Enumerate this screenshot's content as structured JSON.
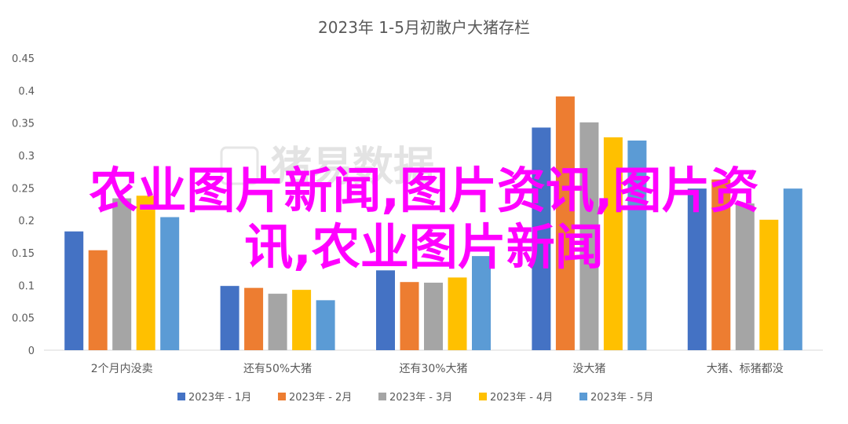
{
  "chart_data": {
    "type": "bar",
    "title": "2023年 1-5月初散户大猪存栏",
    "categories": [
      "2个月内没卖",
      "还有50%大猪",
      "还有30%大猪",
      "没大猪",
      "大猪、标猪都没"
    ],
    "series": [
      {
        "name": "2023年 - 1月",
        "color": "#4472c4",
        "values": [
          0.183,
          0.099,
          0.123,
          0.343,
          0.249
        ]
      },
      {
        "name": "2023年 - 2月",
        "color": "#ed7d31",
        "values": [
          0.154,
          0.096,
          0.105,
          0.391,
          0.263
        ]
      },
      {
        "name": "2023年 - 3月",
        "color": "#a5a5a5",
        "values": [
          0.234,
          0.087,
          0.104,
          0.351,
          0.226
        ]
      },
      {
        "name": "2023年 - 4月",
        "color": "#ffc000",
        "values": [
          0.238,
          0.093,
          0.112,
          0.328,
          0.201
        ]
      },
      {
        "name": "2023年 - 5月",
        "color": "#5b9bd5",
        "values": [
          0.205,
          0.077,
          0.145,
          0.323,
          0.249
        ]
      }
    ],
    "ylim": [
      0,
      0.45
    ],
    "yticks": [
      "0",
      "0.05",
      "0.1",
      "0.15",
      "0.2",
      "0.25",
      "0.3",
      "0.35",
      "0.4",
      "0.45"
    ],
    "grid": false,
    "legend_position": "bottom"
  },
  "overlay": {
    "line1": "农业图片新闻,图片资讯,图片资",
    "line2": "讯,农业图片新闻"
  },
  "watermark": {
    "text": "猪易数据"
  }
}
